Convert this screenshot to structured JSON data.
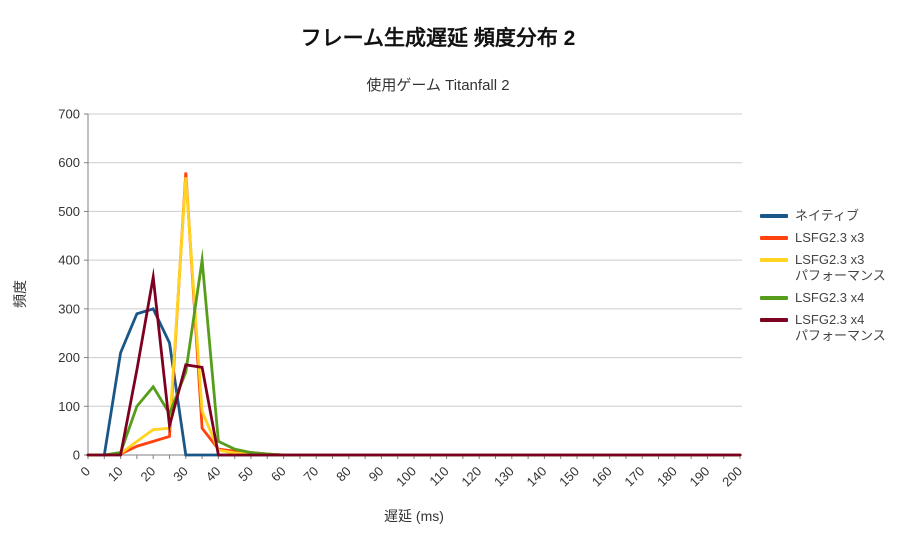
{
  "chart_data": {
    "type": "line",
    "title": "フレーム生成遅延 頻度分布 2",
    "subtitle": "使用ゲーム Titanfall 2",
    "xlabel": "遅延 (ms)",
    "ylabel": "頻度",
    "xlim": [
      0,
      200
    ],
    "ylim": [
      0,
      700
    ],
    "x_major_tick": 10,
    "x_minor_tick": 5,
    "y_tick": 100,
    "grid": "horizontal",
    "legend_position": "right",
    "colors": {
      "gridline": "#cccccc",
      "axis": "#808080",
      "tick_label": "#333333"
    },
    "x": [
      0,
      5,
      10,
      15,
      20,
      25,
      30,
      35,
      40,
      45,
      50,
      55,
      60,
      65,
      70,
      75,
      80,
      85,
      90,
      95,
      100,
      105,
      110,
      115,
      120,
      125,
      130,
      135,
      140,
      145,
      150,
      155,
      160,
      165,
      170,
      175,
      180,
      185,
      190,
      195,
      200
    ],
    "series": [
      {
        "name": "ネイティブ",
        "color": "#1a5786",
        "values": [
          0,
          0,
          210,
          290,
          300,
          230,
          0,
          0,
          0,
          0,
          0,
          0,
          0,
          0,
          0,
          0,
          0,
          0,
          0,
          0,
          0,
          0,
          0,
          0,
          0,
          0,
          0,
          0,
          0,
          0,
          0,
          0,
          0,
          0,
          0,
          0,
          0,
          0,
          0,
          0,
          0
        ]
      },
      {
        "name": "LSFG2.3 x3",
        "color": "#ff420e",
        "values": [
          0,
          0,
          2,
          18,
          28,
          38,
          580,
          55,
          12,
          8,
          5,
          2,
          0,
          0,
          0,
          0,
          0,
          0,
          0,
          0,
          0,
          0,
          0,
          0,
          0,
          0,
          0,
          0,
          0,
          0,
          0,
          0,
          0,
          0,
          0,
          0,
          0,
          0,
          0,
          0,
          0
        ]
      },
      {
        "name": "LSFG2.3 x3\nパフォーマンス",
        "color": "#ffd320",
        "values": [
          0,
          0,
          3,
          28,
          52,
          55,
          570,
          90,
          10,
          4,
          2,
          1,
          0,
          0,
          0,
          0,
          0,
          0,
          0,
          0,
          0,
          0,
          0,
          0,
          0,
          0,
          0,
          0,
          0,
          0,
          0,
          0,
          0,
          0,
          0,
          0,
          0,
          0,
          0,
          0,
          0
        ]
      },
      {
        "name": "LSFG2.3 x4",
        "color": "#579d1c",
        "values": [
          0,
          0,
          5,
          100,
          140,
          85,
          170,
          400,
          28,
          12,
          5,
          2,
          0,
          0,
          0,
          0,
          0,
          0,
          0,
          0,
          0,
          0,
          0,
          0,
          0,
          0,
          0,
          0,
          0,
          0,
          0,
          0,
          0,
          0,
          0,
          0,
          0,
          0,
          0,
          0,
          0
        ]
      },
      {
        "name": "LSFG2.3 x4\nパフォーマンス",
        "color": "#7e0021",
        "values": [
          0,
          0,
          0,
          175,
          365,
          60,
          185,
          180,
          0,
          0,
          0,
          0,
          0,
          0,
          0,
          0,
          0,
          0,
          0,
          0,
          0,
          0,
          0,
          0,
          0,
          0,
          0,
          0,
          0,
          0,
          0,
          0,
          0,
          0,
          0,
          0,
          0,
          0,
          0,
          0,
          0
        ]
      }
    ]
  }
}
